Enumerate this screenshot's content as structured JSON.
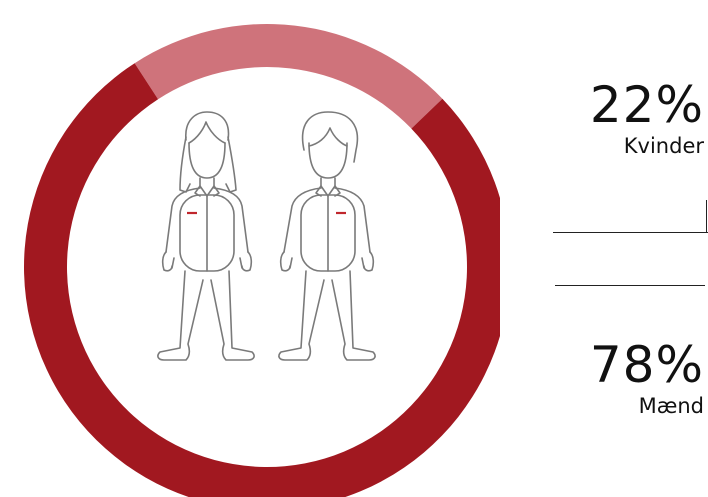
{
  "colors": {
    "men": "#a11820",
    "women": "#cf737b",
    "figure_stroke": "#7a7a7a",
    "accent": "#c0272d",
    "text": "#111111"
  },
  "chart_data": {
    "type": "pie",
    "title": "",
    "series": [
      {
        "name": "Kvinder",
        "value": 22,
        "label": "22%",
        "color": "#cf737b"
      },
      {
        "name": "Mænd",
        "value": 78,
        "label": "78%",
        "color": "#a11820"
      }
    ],
    "legend": "right",
    "style": "donut",
    "icon": "woman-and-man-outline"
  }
}
